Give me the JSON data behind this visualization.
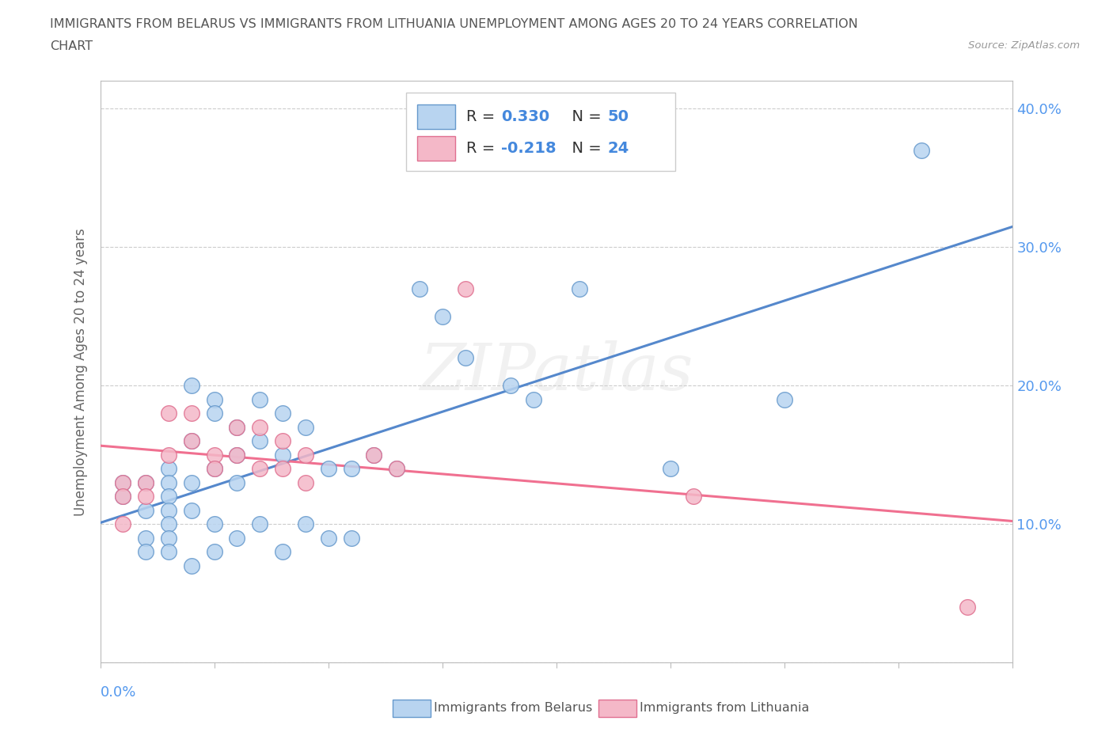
{
  "title_line1": "IMMIGRANTS FROM BELARUS VS IMMIGRANTS FROM LITHUANIA UNEMPLOYMENT AMONG AGES 20 TO 24 YEARS CORRELATION",
  "title_line2": "CHART",
  "source_text": "Source: ZipAtlas.com",
  "ylabel": "Unemployment Among Ages 20 to 24 years",
  "ylabel_right_ticks": [
    "40.0%",
    "30.0%",
    "20.0%",
    "10.0%"
  ],
  "ylabel_right_values": [
    0.4,
    0.3,
    0.2,
    0.1
  ],
  "r_belarus": 0.33,
  "n_belarus": 50,
  "r_lithuania": -0.218,
  "n_lithuania": 24,
  "color_belarus_fill": "#b8d4f0",
  "color_belarus_edge": "#6699cc",
  "color_lithuania_fill": "#f4b8c8",
  "color_lithuania_edge": "#e07090",
  "color_belarus_line": "#5588cc",
  "color_lithuania_line": "#f07090",
  "background_color": "#ffffff",
  "grid_color": "#cccccc",
  "title_color": "#555555",
  "source_color": "#999999",
  "tick_label_color": "#5599ee",
  "xlim": [
    0.0,
    0.04
  ],
  "ylim": [
    0.0,
    0.42
  ],
  "belarus_scatter_x": [
    0.001,
    0.001,
    0.002,
    0.002,
    0.002,
    0.002,
    0.003,
    0.003,
    0.003,
    0.003,
    0.003,
    0.003,
    0.003,
    0.004,
    0.004,
    0.004,
    0.004,
    0.004,
    0.005,
    0.005,
    0.005,
    0.005,
    0.005,
    0.006,
    0.006,
    0.006,
    0.006,
    0.007,
    0.007,
    0.007,
    0.008,
    0.008,
    0.008,
    0.009,
    0.009,
    0.01,
    0.01,
    0.011,
    0.011,
    0.012,
    0.013,
    0.014,
    0.015,
    0.016,
    0.018,
    0.019,
    0.021,
    0.025,
    0.03,
    0.036
  ],
  "belarus_scatter_y": [
    0.13,
    0.12,
    0.13,
    0.11,
    0.09,
    0.08,
    0.14,
    0.13,
    0.12,
    0.11,
    0.1,
    0.09,
    0.08,
    0.2,
    0.16,
    0.13,
    0.11,
    0.07,
    0.19,
    0.18,
    0.14,
    0.1,
    0.08,
    0.17,
    0.15,
    0.13,
    0.09,
    0.19,
    0.16,
    0.1,
    0.18,
    0.15,
    0.08,
    0.17,
    0.1,
    0.14,
    0.09,
    0.14,
    0.09,
    0.15,
    0.14,
    0.27,
    0.25,
    0.22,
    0.2,
    0.19,
    0.27,
    0.14,
    0.19,
    0.37
  ],
  "lithuania_scatter_x": [
    0.001,
    0.001,
    0.001,
    0.002,
    0.002,
    0.003,
    0.003,
    0.004,
    0.004,
    0.005,
    0.005,
    0.006,
    0.006,
    0.007,
    0.007,
    0.008,
    0.008,
    0.009,
    0.009,
    0.012,
    0.013,
    0.016,
    0.026,
    0.038
  ],
  "lithuania_scatter_y": [
    0.13,
    0.12,
    0.1,
    0.13,
    0.12,
    0.18,
    0.15,
    0.18,
    0.16,
    0.15,
    0.14,
    0.17,
    0.15,
    0.17,
    0.14,
    0.16,
    0.14,
    0.15,
    0.13,
    0.15,
    0.14,
    0.27,
    0.12,
    0.04
  ]
}
